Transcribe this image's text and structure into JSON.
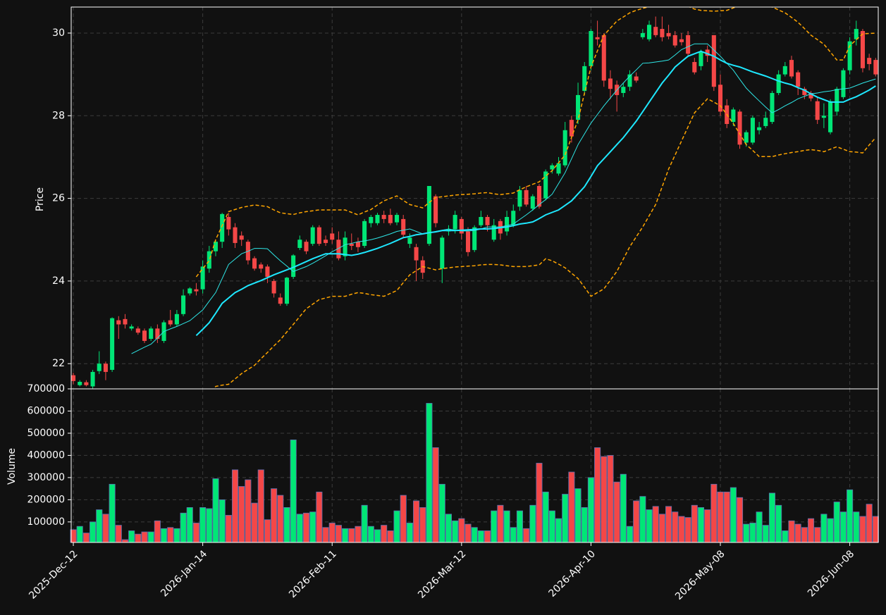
{
  "chart_data": {
    "type": "candlestick",
    "ylabel": "Price",
    "volume_ylabel": "Volume",
    "ylim": [
      21.39,
      30.63
    ],
    "yticks": [
      22,
      24,
      26,
      28,
      30
    ],
    "volume_ylim": [
      7400,
      700000
    ],
    "volume_yticks": [
      100000,
      200000,
      300000,
      400000,
      500000,
      600000,
      700000
    ],
    "xlim": [
      -0.33,
      124.4
    ],
    "grid": true,
    "up_color": "#00e676",
    "down_color": "#f44747",
    "volume_edge_color": "#5a6fb0",
    "categories": [
      "2025-Dec-12",
      null,
      null,
      null,
      null,
      null,
      null,
      null,
      null,
      null,
      null,
      null,
      null,
      null,
      null,
      null,
      null,
      null,
      null,
      null,
      "2026-Jan-14",
      null,
      null,
      null,
      null,
      null,
      null,
      null,
      null,
      null,
      null,
      null,
      null,
      null,
      null,
      null,
      null,
      null,
      null,
      null,
      "2026-Feb-11",
      null,
      null,
      null,
      null,
      null,
      null,
      null,
      null,
      null,
      null,
      null,
      null,
      null,
      null,
      null,
      null,
      null,
      null,
      null,
      "2026-Mar-12",
      null,
      null,
      null,
      null,
      null,
      null,
      null,
      null,
      null,
      null,
      null,
      null,
      null,
      null,
      null,
      null,
      null,
      null,
      null,
      "2026-Apr-10",
      null,
      null,
      null,
      null,
      null,
      null,
      null,
      null,
      null,
      null,
      null,
      null,
      null,
      null,
      null,
      null,
      null,
      null,
      null,
      "2026-May-08",
      null,
      null,
      null,
      null,
      null,
      null,
      null,
      null,
      null,
      null,
      null,
      null,
      null,
      null,
      null,
      null,
      null,
      null,
      null,
      "2026-Jun-08",
      null,
      null,
      null,
      null
    ],
    "open": [
      21.72,
      21.48,
      21.55,
      21.45,
      21.82,
      22.0,
      21.85,
      23.05,
      23.08,
      22.85,
      22.85,
      22.8,
      22.6,
      22.85,
      22.55,
      23.05,
      22.95,
      23.2,
      23.7,
      23.8,
      23.8,
      24.3,
      24.72,
      24.95,
      25.55,
      25.3,
      25.1,
      24.95,
      24.55,
      24.4,
      24.35,
      24.0,
      23.6,
      23.45,
      24.1,
      24.8,
      24.95,
      24.9,
      25.3,
      25.0,
      25.15,
      25.0,
      24.6,
      24.9,
      24.95,
      24.85,
      25.4,
      25.4,
      25.6,
      25.6,
      25.42,
      25.5,
      24.9,
      24.82,
      24.5,
      24.9,
      26.05,
      24.3,
      25.2,
      25.25,
      25.5,
      25.2,
      24.75,
      25.35,
      25.55,
      25.0,
      25.45,
      25.2,
      25.35,
      25.8,
      26.2,
      25.75,
      26.3,
      26.0,
      26.7,
      26.6,
      26.8,
      27.9,
      27.9,
      28.6,
      29.2,
      29.9,
      29.95,
      28.9,
      28.75,
      28.55,
      28.7,
      28.95,
      29.9,
      29.85,
      30.15,
      30.1,
      30.0,
      29.95,
      29.85,
      29.95,
      29.3,
      29.2,
      29.6,
      29.95,
      28.75,
      28.25,
      27.85,
      28.1,
      27.35,
      27.35,
      27.65,
      27.75,
      27.85,
      28.55,
      29.0,
      29.35,
      29.05,
      28.65,
      28.55,
      28.35,
      27.95,
      27.6,
      28.1,
      28.45,
      29.1,
      29.85,
      30.05,
      29.4,
      29.35
    ],
    "high": [
      21.78,
      21.6,
      21.6,
      21.85,
      22.3,
      22.05,
      23.12,
      23.15,
      23.2,
      22.95,
      22.9,
      22.85,
      22.9,
      22.95,
      23.05,
      23.3,
      23.3,
      23.8,
      23.85,
      23.95,
      24.5,
      24.85,
      25.0,
      25.65,
      25.65,
      25.4,
      25.2,
      25.0,
      24.6,
      24.45,
      24.4,
      24.05,
      23.7,
      24.1,
      24.65,
      25.1,
      25.0,
      25.35,
      25.35,
      25.1,
      25.3,
      25.2,
      25.2,
      25.15,
      25.05,
      25.5,
      25.6,
      25.65,
      25.7,
      25.75,
      25.65,
      25.6,
      25.15,
      24.9,
      24.6,
      26.3,
      26.1,
      25.1,
      25.35,
      25.7,
      25.55,
      25.3,
      25.35,
      25.7,
      25.6,
      25.5,
      25.5,
      25.7,
      25.85,
      26.3,
      26.3,
      26.1,
      26.35,
      26.7,
      26.85,
      27.0,
      27.85,
      28.0,
      28.8,
      29.3,
      30.1,
      30.3,
      30.0,
      29.1,
      28.85,
      28.8,
      29.1,
      29.05,
      30.1,
      30.3,
      30.4,
      30.4,
      30.2,
      30.05,
      30.0,
      30.05,
      29.4,
      29.6,
      29.7,
      29.95,
      29.0,
      28.4,
      28.2,
      28.15,
      27.65,
      28.0,
      27.85,
      28.1,
      28.6,
      29.1,
      29.3,
      29.45,
      29.1,
      28.7,
      28.6,
      28.45,
      28.3,
      28.4,
      28.7,
      29.15,
      29.9,
      30.3,
      30.1,
      29.5,
      29.4
    ],
    "low": [
      21.5,
      21.45,
      21.45,
      21.4,
      21.75,
      21.6,
      21.8,
      22.6,
      22.85,
      22.8,
      22.7,
      22.5,
      22.55,
      22.5,
      22.5,
      22.9,
      22.9,
      23.15,
      23.65,
      23.65,
      23.7,
      24.2,
      24.6,
      24.8,
      25.1,
      24.8,
      24.85,
      24.4,
      24.25,
      24.2,
      23.95,
      23.6,
      23.4,
      23.4,
      24.05,
      24.75,
      24.65,
      24.85,
      24.85,
      24.85,
      24.9,
      24.5,
      24.5,
      24.75,
      24.7,
      24.8,
      25.3,
      25.35,
      25.4,
      25.35,
      25.35,
      25.05,
      24.8,
      24.0,
      24.05,
      24.85,
      25.3,
      23.95,
      25.1,
      25.15,
      25.0,
      24.6,
      24.7,
      25.3,
      25.2,
      24.95,
      25.0,
      25.1,
      25.3,
      25.7,
      25.8,
      25.7,
      25.75,
      25.95,
      26.6,
      26.55,
      26.75,
      27.35,
      27.8,
      28.5,
      29.1,
      29.7,
      28.7,
      28.4,
      28.1,
      28.45,
      28.6,
      28.8,
      29.85,
      29.8,
      29.9,
      29.8,
      29.85,
      29.65,
      29.7,
      29.45,
      29.0,
      29.1,
      29.3,
      28.6,
      28.0,
      27.7,
      27.75,
      27.2,
      27.25,
      27.3,
      27.55,
      27.7,
      27.8,
      28.5,
      28.95,
      28.9,
      28.5,
      28.4,
      28.35,
      27.8,
      27.7,
      27.55,
      28.0,
      28.4,
      29.0,
      29.7,
      29.05,
      29.1,
      28.95
    ],
    "close": [
      21.58,
      21.56,
      21.48,
      21.8,
      22.0,
      21.8,
      23.1,
      22.95,
      22.95,
      22.9,
      22.75,
      22.55,
      22.85,
      22.6,
      23.0,
      22.95,
      23.2,
      23.65,
      23.82,
      23.75,
      24.35,
      24.72,
      24.95,
      25.62,
      25.25,
      24.92,
      25.0,
      24.5,
      24.3,
      24.3,
      24.1,
      23.7,
      23.45,
      24.08,
      24.62,
      25.0,
      24.72,
      25.3,
      24.9,
      24.92,
      25.0,
      24.55,
      25.05,
      24.85,
      24.82,
      25.45,
      25.55,
      25.6,
      25.5,
      25.4,
      25.6,
      25.12,
      25.05,
      24.5,
      24.2,
      26.3,
      25.4,
      25.05,
      25.25,
      25.6,
      25.15,
      24.7,
      25.3,
      25.55,
      25.35,
      25.35,
      25.15,
      25.55,
      25.7,
      26.2,
      25.85,
      26.05,
      25.8,
      26.65,
      26.8,
      26.85,
      27.65,
      27.5,
      28.5,
      29.2,
      30.05,
      29.85,
      28.85,
      28.65,
      28.5,
      28.7,
      29.0,
      28.85,
      30.0,
      30.2,
      29.95,
      29.9,
      29.92,
      29.7,
      29.78,
      29.5,
      29.05,
      29.55,
      29.45,
      28.7,
      28.1,
      27.8,
      28.15,
      27.3,
      27.6,
      27.95,
      27.72,
      27.95,
      28.55,
      29.0,
      29.2,
      28.95,
      28.7,
      28.5,
      28.42,
      27.9,
      28.0,
      28.35,
      28.65,
      29.1,
      29.8,
      30.1,
      29.15,
      29.25,
      29.0
    ],
    "volume": [
      65000,
      80000,
      50000,
      100000,
      155000,
      135000,
      270000,
      85000,
      20000,
      60000,
      45000,
      55000,
      55000,
      105000,
      70000,
      75000,
      70000,
      140000,
      165000,
      95000,
      165000,
      160000,
      295000,
      200000,
      130000,
      335000,
      260000,
      290000,
      185000,
      335000,
      110000,
      250000,
      220000,
      165000,
      470000,
      135000,
      140000,
      145000,
      235000,
      75000,
      95000,
      85000,
      70000,
      70000,
      80000,
      175000,
      80000,
      65000,
      85000,
      60000,
      150000,
      220000,
      95000,
      195000,
      165000,
      635000,
      435000,
      270000,
      135000,
      105000,
      115000,
      90000,
      75000,
      60000,
      60000,
      150000,
      175000,
      150000,
      75000,
      150000,
      70000,
      175000,
      365000,
      235000,
      150000,
      115000,
      225000,
      325000,
      250000,
      165000,
      300000,
      435000,
      395000,
      400000,
      280000,
      315000,
      80000,
      195000,
      215000,
      155000,
      170000,
      135000,
      170000,
      145000,
      125000,
      120000,
      175000,
      165000,
      155000,
      270000,
      235000,
      235000,
      255000,
      210000,
      90000,
      95000,
      145000,
      85000,
      230000,
      175000,
      60000,
      105000,
      90000,
      75000,
      115000,
      75000,
      135000,
      115000,
      190000,
      145000,
      245000,
      145000,
      125000,
      180000,
      125000
    ],
    "series": [
      {
        "color": "#2ee6e6",
        "width": 1,
        "dashed": false,
        "values": [
          null,
          null,
          null,
          null,
          null,
          null,
          null,
          null,
          null,
          22.24,
          22.32,
          22.4,
          22.47,
          22.62,
          22.78,
          22.84,
          22.9,
          22.97,
          23.04,
          23.17,
          23.3,
          23.51,
          23.72,
          24.06,
          24.4,
          24.53,
          24.66,
          24.72,
          24.79,
          24.79,
          24.78,
          24.63,
          24.49,
          24.36,
          24.23,
          24.29,
          24.35,
          24.43,
          24.52,
          24.61,
          24.71,
          24.79,
          24.88,
          24.91,
          24.95,
          24.97,
          25.0,
          25.04,
          25.09,
          25.14,
          25.2,
          25.23,
          25.26,
          25.2,
          25.14,
          25.17,
          25.2,
          25.23,
          25.26,
          25.23,
          25.21,
          25.21,
          25.22,
          25.26,
          25.31,
          25.31,
          25.31,
          25.34,
          25.38,
          25.49,
          25.6,
          25.72,
          25.85,
          25.97,
          26.1,
          26.36,
          26.62,
          26.96,
          27.3,
          27.56,
          27.82,
          28.03,
          28.24,
          28.43,
          28.62,
          28.79,
          28.96,
          29.11,
          29.27,
          29.28,
          29.3,
          29.32,
          29.35,
          29.47,
          29.6,
          29.67,
          29.74,
          29.74,
          29.74,
          29.59,
          29.44,
          29.27,
          29.1,
          28.88,
          28.67,
          28.51,
          28.36,
          28.21,
          28.07,
          28.15,
          28.24,
          28.32,
          28.41,
          28.47,
          28.53,
          28.55,
          28.58,
          28.6,
          28.63,
          28.65,
          28.67,
          28.73,
          28.79,
          28.84,
          28.89
        ]
      },
      {
        "color": "#1ee8ff",
        "width": 2,
        "dashed": false,
        "values": [
          null,
          null,
          null,
          null,
          null,
          null,
          null,
          null,
          null,
          null,
          null,
          null,
          null,
          null,
          null,
          null,
          null,
          null,
          null,
          22.68,
          22.83,
          22.99,
          23.22,
          23.46,
          23.59,
          23.72,
          23.8,
          23.89,
          23.95,
          24.01,
          24.08,
          24.15,
          24.21,
          24.27,
          24.33,
          24.4,
          24.47,
          24.54,
          24.6,
          24.66,
          24.66,
          24.66,
          24.64,
          24.62,
          24.65,
          24.69,
          24.74,
          24.79,
          24.85,
          24.91,
          24.98,
          25.05,
          25.08,
          25.12,
          25.14,
          25.17,
          25.19,
          25.22,
          25.22,
          25.22,
          25.23,
          25.24,
          25.25,
          25.26,
          25.26,
          25.27,
          25.29,
          25.31,
          25.34,
          25.38,
          25.4,
          25.43,
          25.51,
          25.6,
          25.66,
          25.72,
          25.83,
          25.94,
          26.11,
          26.28,
          26.53,
          26.79,
          26.96,
          27.13,
          27.3,
          27.47,
          27.67,
          27.87,
          28.1,
          28.33,
          28.56,
          28.79,
          28.98,
          29.18,
          29.31,
          29.44,
          29.5,
          29.56,
          29.5,
          29.44,
          29.35,
          29.27,
          29.22,
          29.18,
          29.12,
          29.06,
          29.01,
          28.96,
          28.9,
          28.84,
          28.79,
          28.75,
          28.68,
          28.62,
          28.53,
          28.45,
          28.39,
          28.33,
          28.33,
          28.33,
          28.4,
          28.46,
          28.54,
          28.62,
          28.72
        ]
      },
      {
        "color": "#ffa500",
        "width": 1.5,
        "dashed": true,
        "values": [
          null,
          null,
          null,
          null,
          null,
          null,
          null,
          null,
          null,
          null,
          null,
          null,
          null,
          null,
          null,
          null,
          null,
          null,
          null,
          24.1,
          24.3,
          24.49,
          25.0,
          25.34,
          25.68,
          25.73,
          25.78,
          25.81,
          25.84,
          25.82,
          25.8,
          25.72,
          25.65,
          25.63,
          25.61,
          25.65,
          25.68,
          25.7,
          25.72,
          25.72,
          25.72,
          25.72,
          25.72,
          25.66,
          25.6,
          25.67,
          25.73,
          25.84,
          25.94,
          26.0,
          26.06,
          25.95,
          25.85,
          25.81,
          25.77,
          25.9,
          26.02,
          26.04,
          26.06,
          26.08,
          26.09,
          26.1,
          26.11,
          26.13,
          26.14,
          26.11,
          26.09,
          26.11,
          26.13,
          26.21,
          26.28,
          26.34,
          26.4,
          26.54,
          26.67,
          26.86,
          27.05,
          27.48,
          27.9,
          28.54,
          29.18,
          29.57,
          29.95,
          30.12,
          30.29,
          30.39,
          30.49,
          30.55,
          30.6,
          30.64,
          30.67,
          30.7,
          30.72,
          30.72,
          30.7,
          30.65,
          30.58,
          30.55,
          30.54,
          30.53,
          30.54,
          30.55,
          30.61,
          30.67,
          30.72,
          30.74,
          30.72,
          30.68,
          30.63,
          30.56,
          30.49,
          30.38,
          30.26,
          30.11,
          29.95,
          29.84,
          29.73,
          29.54,
          29.35,
          29.35,
          29.69,
          29.84,
          29.98,
          29.99,
          30.0
        ]
      },
      {
        "color": "#ffa500",
        "width": 1.5,
        "dashed": true,
        "values": [
          null,
          null,
          null,
          null,
          null,
          null,
          null,
          null,
          null,
          null,
          null,
          null,
          null,
          null,
          null,
          null,
          null,
          null,
          null,
          20.6,
          20.95,
          21.25,
          21.45,
          21.48,
          21.5,
          21.63,
          21.76,
          21.86,
          21.96,
          22.12,
          22.27,
          22.43,
          22.58,
          22.77,
          22.95,
          23.14,
          23.33,
          23.44,
          23.55,
          23.59,
          23.63,
          23.63,
          23.63,
          23.68,
          23.72,
          23.7,
          23.67,
          23.65,
          23.63,
          23.7,
          23.77,
          23.96,
          24.15,
          24.25,
          24.35,
          24.31,
          24.27,
          24.3,
          24.32,
          24.34,
          24.35,
          24.36,
          24.37,
          24.39,
          24.4,
          24.4,
          24.39,
          24.37,
          24.35,
          24.35,
          24.35,
          24.37,
          24.39,
          24.54,
          24.49,
          24.41,
          24.32,
          24.19,
          24.06,
          23.85,
          23.63,
          23.72,
          23.81,
          24.02,
          24.23,
          24.53,
          24.83,
          25.07,
          25.31,
          25.58,
          25.85,
          26.28,
          26.71,
          27.05,
          27.39,
          27.73,
          28.07,
          28.24,
          28.41,
          28.33,
          28.24,
          28.03,
          27.81,
          27.56,
          27.3,
          27.16,
          27.01,
          27.01,
          27.01,
          27.05,
          27.08,
          27.11,
          27.13,
          27.16,
          27.18,
          27.16,
          27.13,
          27.19,
          27.25,
          27.19,
          27.13,
          27.12,
          27.1,
          27.29,
          27.47
        ]
      }
    ]
  }
}
